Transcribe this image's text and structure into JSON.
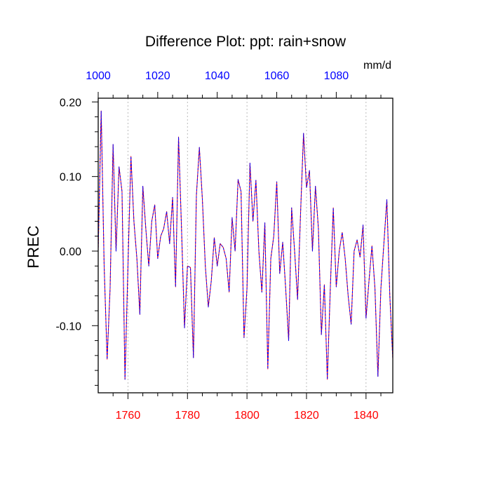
{
  "chart_data": {
    "type": "line",
    "title": "Difference Plot: ppt: rain+snow",
    "units_label": "mm/d",
    "ylabel": "PREC",
    "xlabel": "",
    "x_bottom": {
      "range": [
        1750,
        1849
      ],
      "ticks": [
        1760,
        1780,
        1800,
        1820,
        1840
      ],
      "tick_labels": [
        "1760",
        "1780",
        "1800",
        "1820",
        "1840"
      ],
      "color": "#ff0000"
    },
    "x_top": {
      "range": [
        1000,
        1099
      ],
      "ticks": [
        1000,
        1020,
        1040,
        1060,
        1080
      ],
      "tick_labels": [
        "1000",
        "1020",
        "1040",
        "1060",
        "1080"
      ],
      "color": "#0000ff"
    },
    "y": {
      "range": [
        -0.19,
        0.205
      ],
      "ticks": [
        0.2,
        0.1,
        0.0,
        -0.1
      ],
      "tick_labels": [
        "0.20",
        "0.10",
        "0.00",
        "-0.10"
      ]
    },
    "grid": "vertical dotted lines at major x ticks",
    "series": [
      {
        "style": "solid",
        "color": "#ff0000",
        "x_start": 1750,
        "x_step": 1,
        "values": [
          0.0,
          0.188,
          -0.02,
          -0.145,
          -0.05,
          0.143,
          0.0,
          0.113,
          0.08,
          -0.172,
          -0.02,
          0.127,
          0.04,
          -0.01,
          -0.085,
          0.087,
          0.03,
          -0.02,
          0.04,
          0.062,
          -0.01,
          0.02,
          0.03,
          0.053,
          0.01,
          0.072,
          -0.048,
          0.153,
          0.03,
          -0.103,
          -0.02,
          -0.022,
          -0.143,
          0.075,
          0.139,
          0.07,
          -0.02,
          -0.075,
          -0.04,
          0.018,
          -0.02,
          0.01,
          0.005,
          -0.01,
          -0.055,
          0.045,
          0.0,
          0.096,
          0.08,
          -0.116,
          -0.05,
          0.118,
          0.04,
          0.095,
          0.0,
          -0.055,
          0.038,
          -0.158,
          -0.01,
          0.02,
          0.093,
          -0.03,
          0.012,
          -0.05,
          -0.12,
          0.058,
          0.0,
          -0.065,
          0.05,
          0.158,
          0.085,
          0.108,
          0.0,
          0.087,
          0.03,
          -0.112,
          -0.045,
          -0.172,
          -0.05,
          0.058,
          -0.048,
          0.0,
          0.025,
          -0.01,
          -0.06,
          -0.098,
          0.0,
          0.015,
          -0.008,
          0.035,
          -0.09,
          -0.04,
          0.007,
          -0.05,
          -0.168,
          -0.05,
          0.01,
          0.069,
          -0.06,
          -0.145
        ]
      },
      {
        "style": "dashed",
        "color": "#0000ff",
        "x_start": 1750,
        "x_step": 1,
        "values": [
          0.0,
          0.188,
          -0.02,
          -0.145,
          -0.05,
          0.143,
          0.0,
          0.113,
          0.08,
          -0.172,
          -0.02,
          0.127,
          0.04,
          -0.01,
          -0.085,
          0.087,
          0.03,
          -0.02,
          0.04,
          0.062,
          -0.01,
          0.02,
          0.03,
          0.053,
          0.01,
          0.072,
          -0.048,
          0.153,
          0.03,
          -0.103,
          -0.02,
          -0.022,
          -0.143,
          0.075,
          0.139,
          0.07,
          -0.02,
          -0.075,
          -0.04,
          0.018,
          -0.02,
          0.01,
          0.005,
          -0.01,
          -0.055,
          0.045,
          0.0,
          0.096,
          0.08,
          -0.116,
          -0.05,
          0.118,
          0.04,
          0.095,
          0.0,
          -0.055,
          0.038,
          -0.158,
          -0.01,
          0.02,
          0.093,
          -0.03,
          0.012,
          -0.05,
          -0.12,
          0.058,
          0.0,
          -0.065,
          0.05,
          0.158,
          0.085,
          0.108,
          0.0,
          0.087,
          0.03,
          -0.112,
          -0.045,
          -0.172,
          -0.05,
          0.058,
          -0.048,
          0.0,
          0.025,
          -0.01,
          -0.06,
          -0.098,
          0.0,
          0.015,
          -0.008,
          0.035,
          -0.09,
          -0.04,
          0.007,
          -0.05,
          -0.168,
          -0.05,
          0.01,
          0.069,
          -0.06,
          -0.145
        ]
      }
    ]
  }
}
